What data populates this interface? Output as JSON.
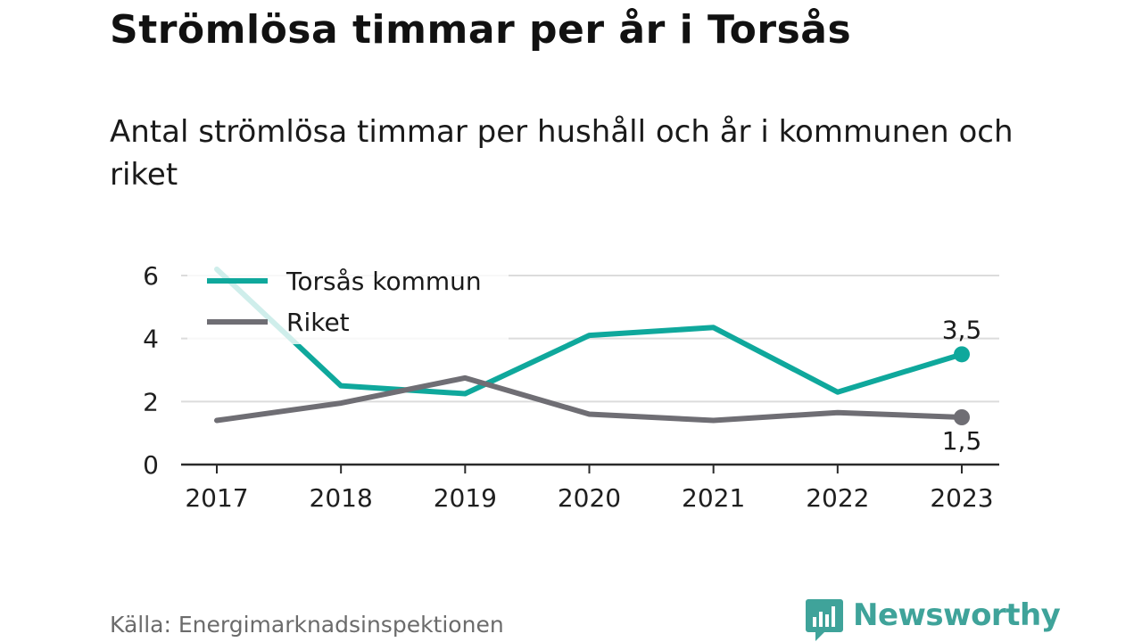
{
  "title": "Strömlösa timmar per år i Torsås",
  "subtitle": "Antal strömlösa timmar per hushåll och år i kommunen och riket",
  "source": "Källa: Energimarknadsinspektionen",
  "brand": "Newsworthy",
  "colors": {
    "torsas": "#0fa89c",
    "riket": "#6f6e74",
    "grid": "#dcdcdc",
    "axis": "#2a2a2a",
    "brand": "#3fa39a"
  },
  "chart_data": {
    "type": "line",
    "x": [
      "2017",
      "2018",
      "2019",
      "2020",
      "2021",
      "2022",
      "2023"
    ],
    "ylim": [
      0,
      6
    ],
    "yticks": [
      "0",
      "2",
      "4",
      "6"
    ],
    "grid": true,
    "legend_position": "top-left",
    "series": [
      {
        "name": "Torsås kommun",
        "values": [
          6.2,
          2.5,
          2.25,
          4.1,
          4.35,
          2.3,
          3.5
        ],
        "end_label": "3,5"
      },
      {
        "name": "Riket",
        "values": [
          1.4,
          1.95,
          2.75,
          1.6,
          1.4,
          1.65,
          1.5
        ],
        "end_label": "1,5"
      }
    ]
  }
}
